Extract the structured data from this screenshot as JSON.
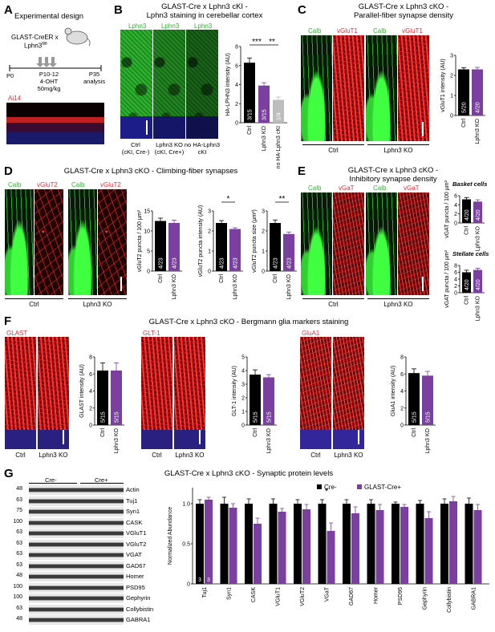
{
  "panels": {
    "A": {
      "letter": "A",
      "title": "Experimental design",
      "mouse": "GLAST-CreER x",
      "mouse2": "Lphn3",
      "mouse2_sup": "fl/fl",
      "t0": "P0",
      "tx": "P10-12",
      "drug": "4-OHT",
      "dose": "50mg/kg",
      "tend": "P35",
      "tend2": "analysis",
      "ai14": "Ai14"
    },
    "B": {
      "letter": "B",
      "title1": "GLAST-Cre x Lphn3 cKI -",
      "title2": "Lphn3 staining in cerebellar cortex",
      "ch": [
        "Lphn3",
        "Lphn3",
        "Lphn3"
      ],
      "cond": [
        "Ctrl",
        "(cKI, Cre-)",
        "Lphn3 KO",
        "(cKI, Cre+)",
        "no HA-Lphn3",
        "cKI"
      ],
      "ylabel": "HA-LPHN3 intensity (AU)",
      "sig": [
        "***",
        "**"
      ]
    },
    "C": {
      "letter": "C",
      "title1": "GLAST-Cre x Lphn3 cKO -",
      "title2": "Parallel-fiber synapse density",
      "ch": [
        "Calb",
        "vGluT1",
        "Calb",
        "vGluT1"
      ],
      "cond": [
        "Ctrl",
        "Lphn3 KO"
      ],
      "ylabel": "vGluT1 intensity (AU)"
    },
    "D": {
      "letter": "D",
      "title": "GLAST-Cre x Lphn3 cKO - Climbing-fiber synapses",
      "ch": [
        "Calb",
        "vGluT2",
        "Calb",
        "vGluT2"
      ],
      "cond": [
        "Ctrl",
        "Lphn3 KO"
      ],
      "ylabel1": "vGluT2 puncta / 100 µm²",
      "ylabel2": "vGluT2 puncta intensity (AU)",
      "ylabel3": "vGluT2 puncta size (µm²)",
      "sig2": "*",
      "sig3": "**"
    },
    "E": {
      "letter": "E",
      "title1": "GLAST-Cre x Lphn3 cKO -",
      "title2": "Inhibitory synapse density",
      "ch": [
        "Calb",
        "vGaT",
        "Calb",
        "vGaT"
      ],
      "cond": [
        "Ctrl",
        "Lphn3 KO"
      ],
      "sub1": "Basket cells",
      "sub2": "Stellate cells",
      "ylabel1": "vGAT puncta / 100 µm²",
      "ylabel2": "vGAT puncta / 100 µm²"
    },
    "F": {
      "letter": "F",
      "title": "GLAST-Cre x Lphn3 cKO - Bergmann glia markers staining",
      "ch": [
        "GLAST",
        "GLT-1",
        "GluA1"
      ],
      "cond": [
        "Ctrl",
        "Lphn3 KO"
      ],
      "ylabel1": "GLAST intensity (AU)",
      "ylabel2": "GLT-1 intensity (AU)",
      "ylabel3": "GluA1 intensity (AU)"
    },
    "G": {
      "letter": "G",
      "title": "GLAST-Cre x Lphn3 cKO - Synaptic protein levels",
      "cre_minus": "Cre-",
      "cre_plus": "Cre+",
      "ylabel": "Normalized Abundance",
      "legend": [
        "Cre-",
        "GLAST-Cre+"
      ],
      "sig": "*"
    }
  },
  "blot": {
    "proteins": [
      "Actin",
      "Tuj1",
      "Syn1",
      "CASK",
      "VGluT1",
      "VGluT2",
      "VGAT",
      "GAD67",
      "Homer",
      "PSD95",
      "Gephyrin",
      "Collybistin",
      "GABRA1"
    ],
    "mw": [
      "48",
      "63",
      "75",
      "100",
      "63",
      "63",
      "63",
      "63",
      "48",
      "100",
      "100",
      "63",
      "48"
    ]
  },
  "chart_data": [
    {
      "type": "bar",
      "panel": "B",
      "categories": [
        "Ctrl",
        "Lphn3 KO",
        "no HA-Lphn3 cKI"
      ],
      "values": [
        6.3,
        3.9,
        2.4
      ],
      "errors": [
        0.5,
        0.3,
        0.3
      ],
      "n": [
        "3/15",
        "3/15",
        "1/4"
      ],
      "ylim": [
        0,
        8
      ],
      "yticks": [
        "0",
        "2",
        "4",
        "6",
        "8"
      ],
      "colors": [
        "#000000",
        "#7b3fa0",
        "#bdbdbd"
      ]
    },
    {
      "type": "bar",
      "panel": "C",
      "categories": [
        "Ctrl",
        "Lphn3 KO"
      ],
      "values": [
        2.3,
        2.3
      ],
      "errors": [
        0.08,
        0.1
      ],
      "n": [
        "5/20",
        "4/20"
      ],
      "ylim": [
        0,
        3
      ],
      "yticks": [
        "0",
        "1",
        "2",
        "3"
      ]
    },
    {
      "type": "bar",
      "panel": "D1",
      "categories": [
        "Ctrl",
        "Lphn3 KO"
      ],
      "values": [
        12.5,
        12.0
      ],
      "errors": [
        0.7,
        0.7
      ],
      "n": [
        "4/23",
        "4/23"
      ],
      "ylim": [
        0,
        15
      ],
      "yticks": [
        "0",
        "5",
        "10",
        "15"
      ]
    },
    {
      "type": "bar",
      "panel": "D2",
      "categories": [
        "Ctrl",
        "Lphn3 KO"
      ],
      "values": [
        2.4,
        2.1
      ],
      "errors": [
        0.12,
        0.06
      ],
      "n": [
        "4/23",
        "4/23"
      ],
      "ylim": [
        0,
        3
      ],
      "yticks": [
        "0",
        "1",
        "2",
        "3"
      ]
    },
    {
      "type": "bar",
      "panel": "D3",
      "categories": [
        "Ctrl",
        "Lphn3 KO"
      ],
      "values": [
        2.4,
        1.85
      ],
      "errors": [
        0.15,
        0.1
      ],
      "n": [
        "4/23",
        "4/23"
      ],
      "ylim": [
        0,
        3
      ],
      "yticks": [
        "0",
        "1",
        "2",
        "3"
      ]
    },
    {
      "type": "bar",
      "panel": "E1",
      "categories": [
        "Ctrl",
        "Lphn3 KO"
      ],
      "values": [
        5.2,
        4.7
      ],
      "errors": [
        0.4,
        0.4
      ],
      "n": [
        "4/20",
        "4/20"
      ],
      "ylim": [
        0,
        6
      ],
      "yticks": [
        "0",
        "2",
        "4",
        "6"
      ]
    },
    {
      "type": "bar",
      "panel": "E2",
      "categories": [
        "Ctrl",
        "Lphn3 KO"
      ],
      "values": [
        6.0,
        6.7
      ],
      "errors": [
        0.6,
        0.5
      ],
      "n": [
        "4/20",
        "4/20"
      ],
      "ylim": [
        0,
        8
      ],
      "yticks": [
        "0",
        "2",
        "4",
        "6",
        "8"
      ]
    },
    {
      "type": "bar",
      "panel": "F1",
      "categories": [
        "Ctrl",
        "Lphn3 KO"
      ],
      "values": [
        6.4,
        6.4
      ],
      "errors": [
        0.9,
        0.9
      ],
      "n": [
        "5/15",
        "5/15"
      ],
      "ylim": [
        0,
        8
      ],
      "yticks": [
        "0",
        "2",
        "4",
        "6",
        "8"
      ]
    },
    {
      "type": "bar",
      "panel": "F2",
      "categories": [
        "Ctrl",
        "Lphn3 KO"
      ],
      "values": [
        3.7,
        3.5
      ],
      "errors": [
        0.35,
        0.2
      ],
      "n": [
        "5/15",
        "5/15"
      ],
      "ylim": [
        0,
        5
      ],
      "yticks": [
        "0",
        "1",
        "2",
        "3",
        "4",
        "5"
      ]
    },
    {
      "type": "bar",
      "panel": "F3",
      "categories": [
        "Ctrl",
        "Lphn3 KO"
      ],
      "values": [
        6.1,
        5.8
      ],
      "errors": [
        0.5,
        0.5
      ],
      "n": [
        "5/15",
        "5/15"
      ],
      "ylim": [
        0,
        8
      ],
      "yticks": [
        "0",
        "2",
        "4",
        "6",
        "8"
      ]
    },
    {
      "type": "bar",
      "panel": "G",
      "categories": [
        "Tuj1",
        "Syn1",
        "CASK",
        "VGluT1",
        "VGluT2",
        "VGaT",
        "GAD67",
        "Homer",
        "PSD95",
        "Gephyrin",
        "Collybistin",
        "GABRA1"
      ],
      "series": [
        {
          "name": "Cre-",
          "values": [
            1.0,
            1.0,
            1.0,
            1.0,
            1.0,
            1.0,
            1.0,
            1.0,
            1.0,
            1.0,
            1.0,
            1.0
          ],
          "errors": [
            0.05,
            0.08,
            0.06,
            0.06,
            0.05,
            0.05,
            0.05,
            0.05,
            0.02,
            0.04,
            0.06,
            0.07
          ]
        },
        {
          "name": "GLAST-Cre+",
          "values": [
            1.05,
            0.95,
            0.75,
            0.9,
            0.93,
            0.66,
            0.88,
            0.92,
            0.96,
            0.82,
            1.03,
            0.92
          ],
          "errors": [
            0.03,
            0.05,
            0.07,
            0.04,
            0.06,
            0.1,
            0.08,
            0.07,
            0.03,
            0.08,
            0.06,
            0.07
          ]
        }
      ],
      "n": [
        "3",
        "3"
      ],
      "ylim": [
        0,
        1.2
      ],
      "yticks": [
        "0",
        "0.5",
        "1.0"
      ],
      "colors": [
        "#000000",
        "#7b3fa0"
      ]
    }
  ]
}
